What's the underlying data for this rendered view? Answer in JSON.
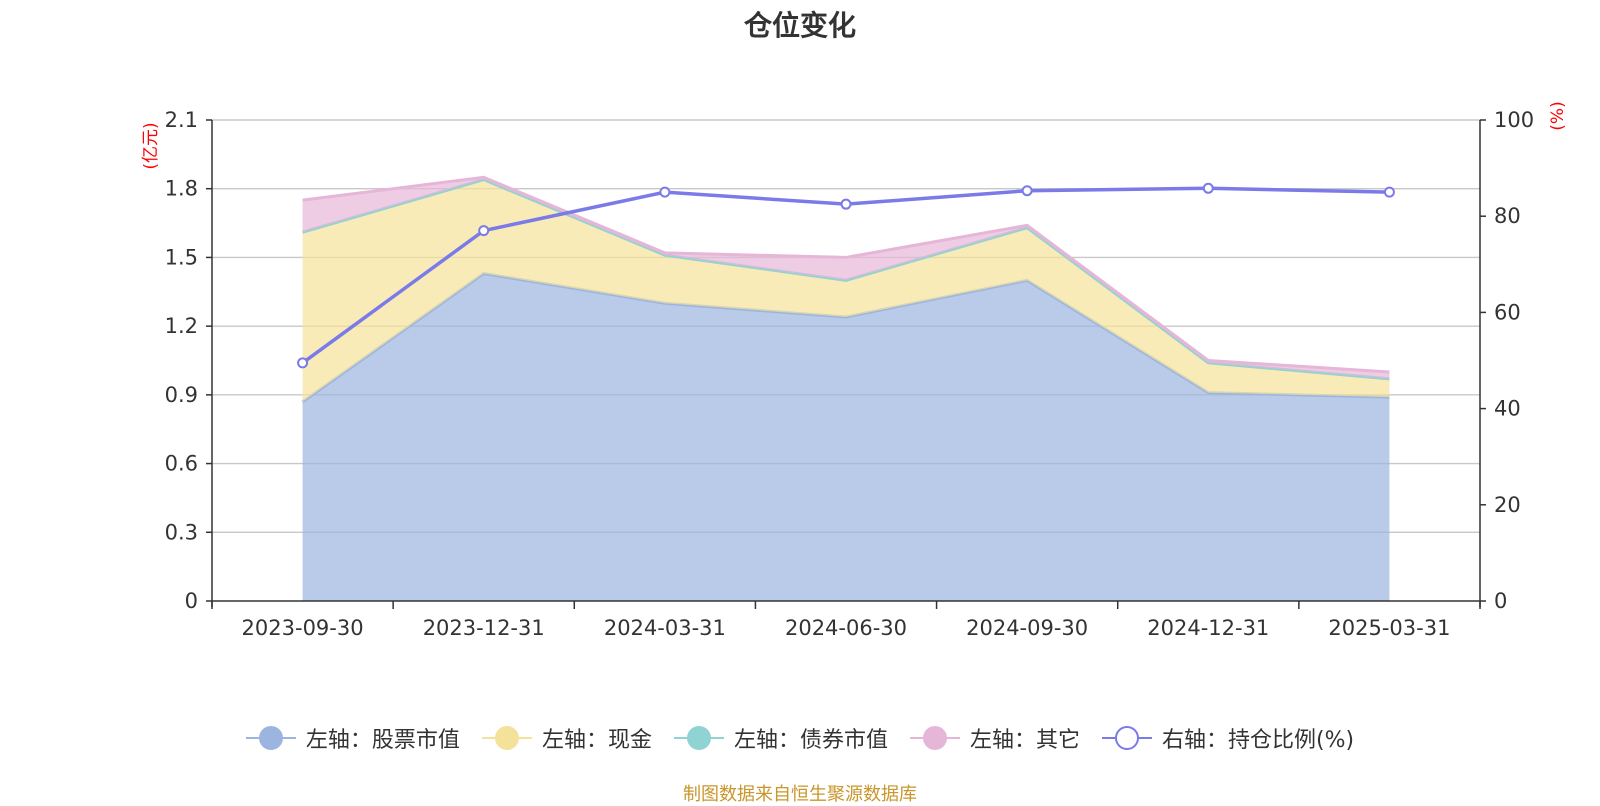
{
  "title": "仓位变化",
  "source": "制图数据来自恒生聚源数据库",
  "colors": {
    "stock": "#9bb5e0",
    "cash": "#f5e29a",
    "bond": "#8fd3d3",
    "other": "#e6b6d8",
    "ratio": "#7a7ae8",
    "unit": "#ff0000"
  },
  "legend": [
    {
      "key": "stock",
      "label": "左轴：股票市值"
    },
    {
      "key": "cash",
      "label": "左轴：现金"
    },
    {
      "key": "bond",
      "label": "左轴：债券市值"
    },
    {
      "key": "other",
      "label": "左轴：其它"
    },
    {
      "key": "ratio",
      "label": "右轴：持仓比例(%)"
    }
  ],
  "chart_data": {
    "type": "area",
    "title": "仓位变化",
    "categories": [
      "2023-09-30",
      "2023-12-31",
      "2024-03-31",
      "2024-06-30",
      "2024-09-30",
      "2024-12-31",
      "2025-03-31"
    ],
    "left_axis": {
      "unit": "(亿元)",
      "ylim": [
        0,
        2.1
      ],
      "ticks": [
        "0",
        "0.3",
        "0.6",
        "0.9",
        "1.2",
        "1.5",
        "1.8",
        "2.1"
      ]
    },
    "right_axis": {
      "unit": "(%)",
      "ylim": [
        0,
        100
      ],
      "ticks": [
        "0",
        "20",
        "40",
        "60",
        "80",
        "100"
      ]
    },
    "stacked": true,
    "series": [
      {
        "key": "stock",
        "name": "左轴：股票市值",
        "axis": "left",
        "values": [
          0.87,
          1.43,
          1.3,
          1.24,
          1.4,
          0.91,
          0.89
        ]
      },
      {
        "key": "cash",
        "name": "左轴：现金",
        "axis": "left",
        "values": [
          0.74,
          0.41,
          0.21,
          0.16,
          0.23,
          0.13,
          0.08
        ]
      },
      {
        "key": "bond",
        "name": "左轴：债券市值",
        "axis": "left",
        "values": [
          0,
          0,
          0,
          0,
          0,
          0,
          0
        ]
      },
      {
        "key": "other",
        "name": "左轴：其它",
        "axis": "left",
        "values": [
          0.14,
          0.01,
          0.01,
          0.1,
          0.01,
          0.01,
          0.03
        ]
      },
      {
        "key": "ratio",
        "name": "右轴：持仓比例(%)",
        "axis": "right",
        "type": "line",
        "values": [
          49.5,
          77.0,
          85.0,
          82.5,
          85.3,
          85.8,
          85.0
        ]
      }
    ],
    "grid": true,
    "legend_position": "bottom"
  }
}
